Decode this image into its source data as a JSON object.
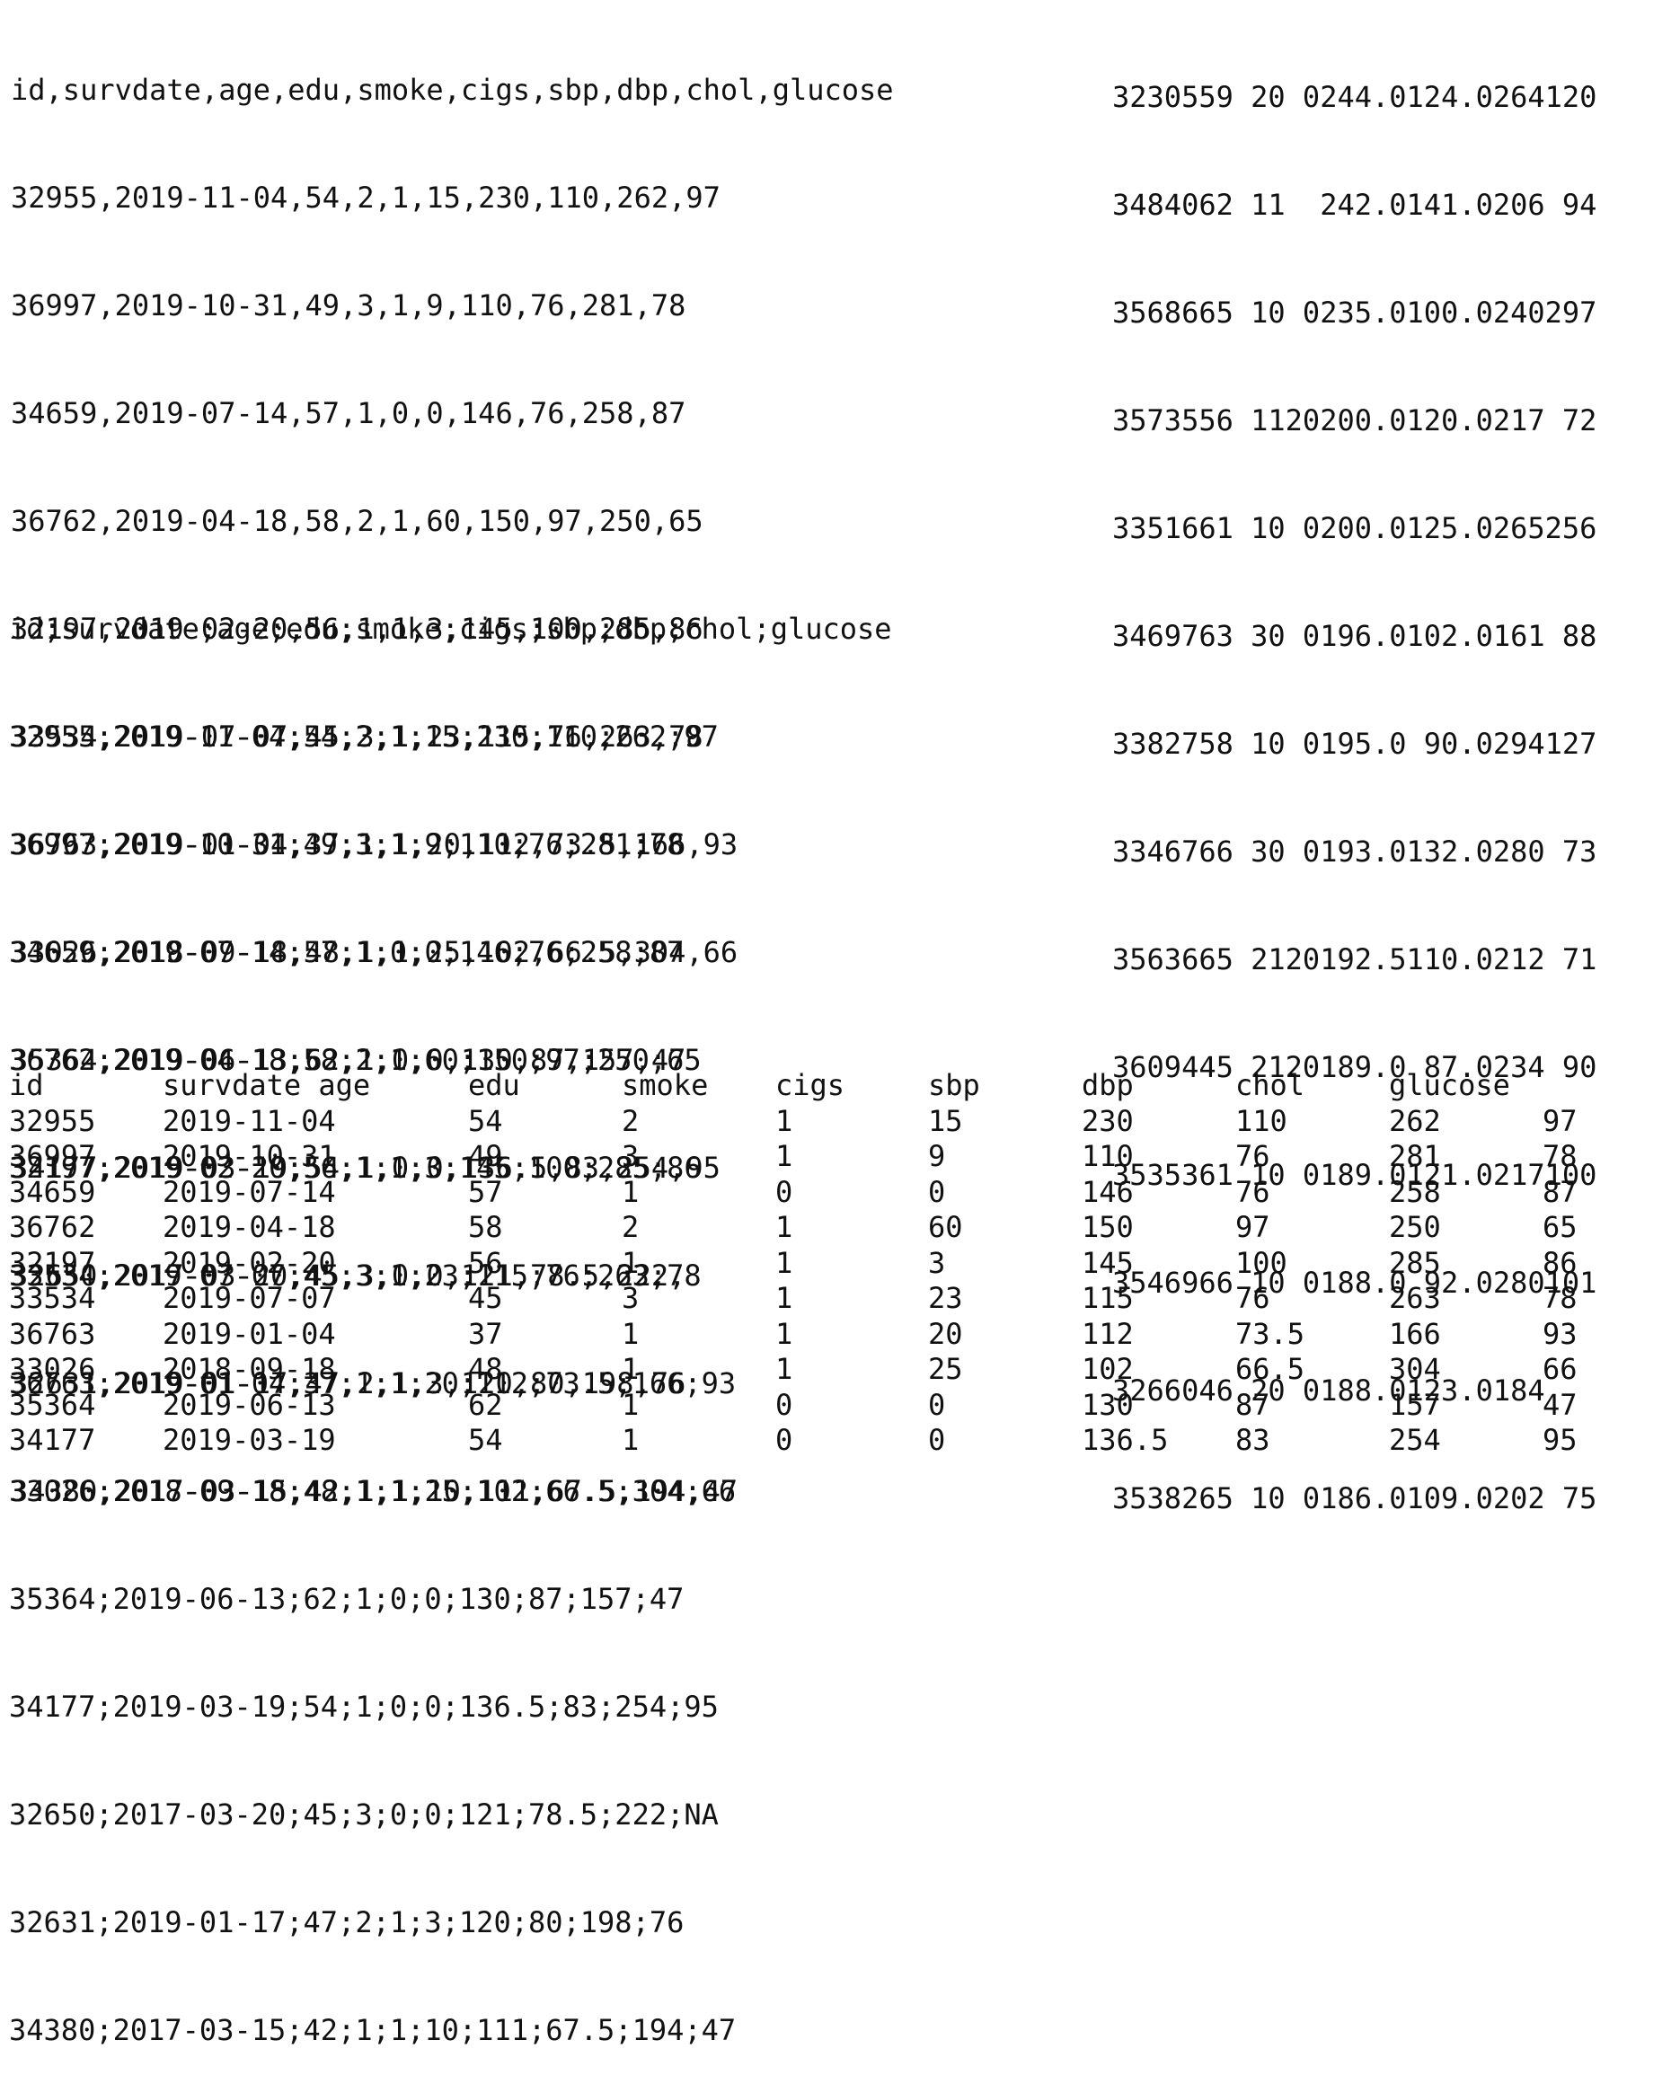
{
  "comma_block": {
    "lines": [
      "id,survdate,age,edu,smoke,cigs,sbp,dbp,chol,glucose",
      "32955,2019-11-04,54,2,1,15,230,110,262,97",
      "36997,2019-10-31,49,3,1,9,110,76,281,78",
      "34659,2019-07-14,57,1,0,0,146,76,258,87",
      "36762,2019-04-18,58,2,1,60,150,97,250,65",
      "32197,2019-02-20,56,1,1,3,145,100,285,86",
      "33534,2019-07-07,45,3,1,23,115,76,263,78",
      "36763,2019-01-04,37,1,1,20,112,73.5,166,93",
      "33026,2018-09-18,48,1,1,25,102,66.5,304,66",
      "35364,2019-06-13,62,1,0,0,130,87,157,47",
      "34177,2019-03-19,54,1,0,0,136.5,83,254,95",
      "32650,2017-03-20,45,3,0,0,121,78.5,222,",
      "32631,2019-01-17,47,2,1,3,120,80,198,76",
      "34380,2017-03-15,42,1,1,10,111,67.5,194,47"
    ]
  },
  "fixed_width_block": {
    "lines": [
      "3230559 20 0244.0124.0264120",
      "3484062 11  242.0141.0206 94",
      "3568665 10 0235.0100.0240297",
      "3573556 1120200.0120.0217 72",
      "3351661 10 0200.0125.0265256",
      "3469763 30 0196.0102.0161 88",
      "3382758 10 0195.0 90.0294127",
      "3346766 30 0193.0132.0280 73",
      "3563665 2120192.5110.0212 71",
      "3609445 2120189.0 87.0234 90",
      "3535361 10 0189.0121.0217100",
      "3546966 10 0188.0 92.0280101",
      "3266046 20 0188.0123.0184",
      "3538265 10 0186.0109.0202 75"
    ]
  },
  "semicolon_block": {
    "lines": [
      "id;survdate;age;edu;smoke;cigs;sbp;dbp;chol;glucose",
      "32955;2019-11-04;54;2;1;15;230;110;262;97",
      "36997;2019-10-31;49;3;1;9;110;76;281;78",
      "34659;2019-07-14;57;1;0;0;146;76;258;87",
      "36762;2019-04-18;58;2;1;60;150;97;250;65",
      "32197;2019-02-20;56;1;1;3;145;100;285;86",
      "33534;2019-07-07;45;3;1;23;115;76;263;78",
      "36763;2019-01-04;37;1;1;20;112;73.5;166;93",
      "33026;2018-09-18;48;1;1;25;102;66.5;304;66",
      "35364;2019-06-13;62;1;0;0;130;87;157;47",
      "34177;2019-03-19;54;1;0;0;136.5;83;254;95",
      "32650;2017-03-20;45;3;0;0;121;78.5;222;NA",
      "32631;2019-01-17;47;2;1;3;120;80;198;76",
      "34380;2017-03-15;42;1;1;10;111;67.5;194;47"
    ]
  },
  "tab_block": {
    "header": [
      "id",
      "survdate age",
      "",
      "edu",
      "smoke",
      "cigs",
      "sbp",
      "dbp",
      "chol",
      "glucose",
      ""
    ],
    "rows": [
      [
        "32955",
        "2019-11-04",
        "54",
        "2",
        "1",
        "15",
        "230",
        "110",
        "262",
        "97"
      ],
      [
        "36997",
        "2019-10-31",
        "49",
        "3",
        "1",
        "9",
        "110",
        "76",
        "281",
        "78"
      ],
      [
        "34659",
        "2019-07-14",
        "57",
        "1",
        "0",
        "0",
        "146",
        "76",
        "258",
        "87"
      ],
      [
        "36762",
        "2019-04-18",
        "58",
        "2",
        "1",
        "60",
        "150",
        "97",
        "250",
        "65"
      ],
      [
        "32197",
        "2019-02-20",
        "56",
        "1",
        "1",
        "3",
        "145",
        "100",
        "285",
        "86"
      ],
      [
        "33534",
        "2019-07-07",
        "45",
        "3",
        "1",
        "23",
        "115",
        "76",
        "263",
        "78"
      ],
      [
        "36763",
        "2019-01-04",
        "37",
        "1",
        "1",
        "20",
        "112",
        "73.5",
        "166",
        "93"
      ],
      [
        "33026",
        "2018-09-18",
        "48",
        "1",
        "1",
        "25",
        "102",
        "66.5",
        "304",
        "66"
      ],
      [
        "35364",
        "2019-06-13",
        "62",
        "1",
        "0",
        "0",
        "130",
        "87",
        "157",
        "47"
      ],
      [
        "34177",
        "2019-03-19",
        "54",
        "1",
        "0",
        "0",
        "136.5",
        "83",
        "254",
        "95"
      ]
    ]
  }
}
